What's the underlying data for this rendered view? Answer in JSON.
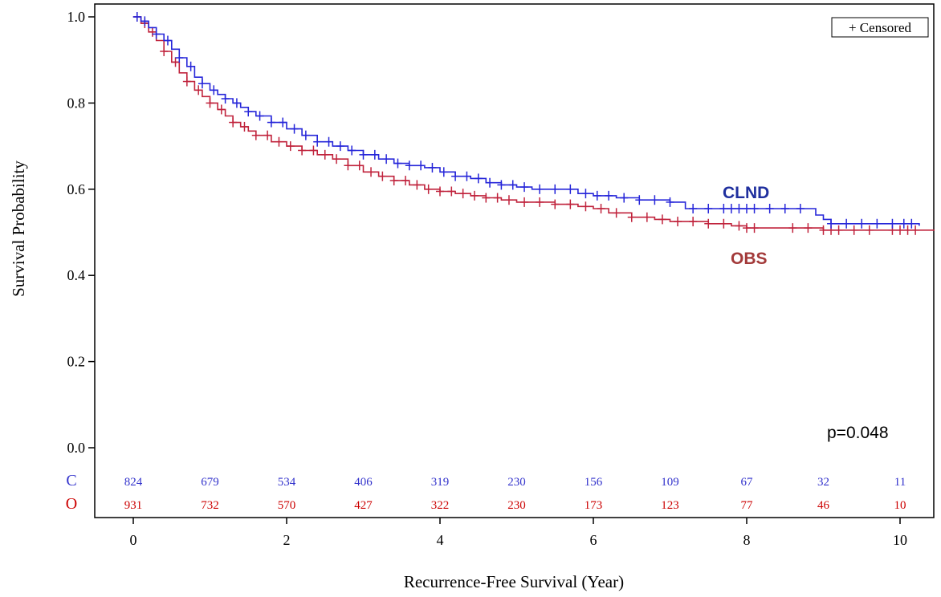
{
  "chart_data": {
    "type": "line",
    "subtype": "kaplan-meier",
    "xlabel": "Recurrence-Free Survival (Year)",
    "ylabel": "Survival Probability",
    "xlim": [
      -0.5,
      10.5
    ],
    "ylim": [
      0.0,
      1.0
    ],
    "xticks": [
      "0",
      "2",
      "4",
      "6",
      "8",
      "10"
    ],
    "yticks": [
      "0.0",
      "0.2",
      "0.4",
      "0.6",
      "0.8",
      "1.0"
    ],
    "legend": {
      "text": "+ Censored",
      "symbol": "+",
      "label": "Censored",
      "position": "top-right"
    },
    "annotation": "p=0.048",
    "risk_table": {
      "times": [
        0,
        1,
        2,
        3,
        4,
        5,
        6,
        7,
        8,
        9,
        10
      ],
      "rows": [
        {
          "label": "C",
          "color": "#3333cc",
          "counts": [
            "824",
            "679",
            "534",
            "406",
            "319",
            "230",
            "156",
            "109",
            "67",
            "32",
            "11"
          ]
        },
        {
          "label": "O",
          "color": "#cc0000",
          "counts": [
            "931",
            "732",
            "570",
            "427",
            "322",
            "230",
            "173",
            "123",
            "77",
            "46",
            "10"
          ]
        }
      ]
    },
    "series": [
      {
        "name": "CLND",
        "color": "#2626d9",
        "label_color": "#1f2f9e",
        "x": [
          0,
          0.1,
          0.2,
          0.3,
          0.4,
          0.5,
          0.6,
          0.7,
          0.8,
          0.9,
          1.0,
          1.1,
          1.2,
          1.3,
          1.4,
          1.5,
          1.6,
          1.8,
          2.0,
          2.2,
          2.4,
          2.6,
          2.8,
          3.0,
          3.2,
          3.4,
          3.6,
          3.8,
          4.0,
          4.2,
          4.4,
          4.6,
          4.8,
          5.0,
          5.2,
          5.5,
          5.8,
          6.0,
          6.3,
          6.6,
          7.0,
          7.2,
          7.5,
          8.0,
          8.5,
          8.9,
          9.0,
          9.1,
          9.5,
          10.0,
          10.25
        ],
        "y": [
          1.0,
          0.99,
          0.975,
          0.96,
          0.945,
          0.925,
          0.905,
          0.885,
          0.86,
          0.845,
          0.83,
          0.82,
          0.81,
          0.8,
          0.79,
          0.78,
          0.77,
          0.755,
          0.74,
          0.725,
          0.71,
          0.7,
          0.69,
          0.68,
          0.67,
          0.66,
          0.655,
          0.65,
          0.64,
          0.63,
          0.625,
          0.615,
          0.61,
          0.605,
          0.6,
          0.6,
          0.59,
          0.585,
          0.58,
          0.575,
          0.57,
          0.555,
          0.555,
          0.555,
          0.555,
          0.54,
          0.53,
          0.52,
          0.52,
          0.52,
          0.515
        ],
        "censored_x": [
          0.05,
          0.15,
          0.3,
          0.45,
          0.6,
          0.75,
          0.9,
          1.05,
          1.2,
          1.35,
          1.5,
          1.65,
          1.8,
          1.95,
          2.1,
          2.25,
          2.4,
          2.55,
          2.7,
          2.85,
          3.0,
          3.15,
          3.3,
          3.45,
          3.6,
          3.75,
          3.9,
          4.05,
          4.2,
          4.35,
          4.5,
          4.65,
          4.8,
          4.95,
          5.1,
          5.3,
          5.5,
          5.7,
          5.9,
          6.05,
          6.2,
          6.4,
          6.6,
          6.8,
          7.0,
          7.3,
          7.5,
          7.7,
          7.8,
          7.9,
          8.0,
          8.1,
          8.3,
          8.5,
          8.7,
          9.1,
          9.3,
          9.5,
          9.7,
          9.9,
          10.05,
          10.15
        ]
      },
      {
        "name": "OBS",
        "color": "#c0233c",
        "label_color": "#a33a3a",
        "x": [
          0,
          0.1,
          0.2,
          0.3,
          0.4,
          0.5,
          0.6,
          0.7,
          0.8,
          0.9,
          1.0,
          1.1,
          1.2,
          1.3,
          1.4,
          1.5,
          1.6,
          1.8,
          2.0,
          2.2,
          2.4,
          2.6,
          2.8,
          3.0,
          3.2,
          3.4,
          3.6,
          3.8,
          4.0,
          4.2,
          4.4,
          4.6,
          4.8,
          5.0,
          5.5,
          5.8,
          6.0,
          6.2,
          6.5,
          6.8,
          7.0,
          7.5,
          7.8,
          8.0,
          8.5,
          9.0,
          9.5,
          10.0,
          10.45
        ],
        "y": [
          1.0,
          0.985,
          0.965,
          0.945,
          0.92,
          0.895,
          0.87,
          0.85,
          0.83,
          0.815,
          0.8,
          0.785,
          0.77,
          0.755,
          0.745,
          0.735,
          0.725,
          0.71,
          0.7,
          0.69,
          0.68,
          0.67,
          0.655,
          0.64,
          0.63,
          0.62,
          0.61,
          0.6,
          0.595,
          0.59,
          0.585,
          0.58,
          0.575,
          0.57,
          0.565,
          0.56,
          0.555,
          0.545,
          0.535,
          0.53,
          0.525,
          0.52,
          0.515,
          0.51,
          0.51,
          0.505,
          0.505,
          0.505,
          0.505
        ],
        "censored_x": [
          0.05,
          0.15,
          0.25,
          0.4,
          0.55,
          0.7,
          0.85,
          1.0,
          1.15,
          1.3,
          1.45,
          1.6,
          1.75,
          1.9,
          2.05,
          2.2,
          2.35,
          2.5,
          2.65,
          2.8,
          2.95,
          3.1,
          3.25,
          3.4,
          3.55,
          3.7,
          3.85,
          4.0,
          4.15,
          4.3,
          4.45,
          4.6,
          4.75,
          4.9,
          5.1,
          5.3,
          5.5,
          5.7,
          5.9,
          6.1,
          6.3,
          6.5,
          6.7,
          6.9,
          7.1,
          7.3,
          7.5,
          7.7,
          7.9,
          8.0,
          8.1,
          8.6,
          8.8,
          9.0,
          9.1,
          9.2,
          9.4,
          9.6,
          9.9,
          10.0,
          10.1,
          10.2
        ]
      }
    ]
  }
}
